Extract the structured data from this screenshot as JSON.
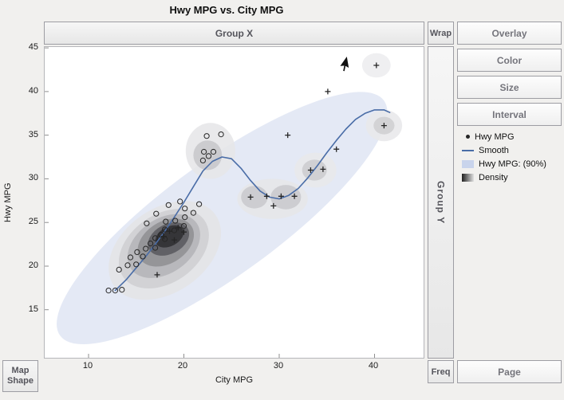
{
  "header": {
    "title": "Hwy MPG vs. City MPG"
  },
  "drop_zones": {
    "group_x": "Group X",
    "wrap": "Wrap",
    "group_y": "Group Y",
    "freq": "Freq",
    "map_shape": [
      "Map",
      "Shape"
    ]
  },
  "buttons": {
    "overlay": "Overlay",
    "color": "Color",
    "size": "Size",
    "interval": "Interval",
    "page": "Page"
  },
  "legend": {
    "items": [
      {
        "label": "Hwy MPG",
        "swatch": "dot"
      },
      {
        "label": "Smooth",
        "swatch": "line"
      },
      {
        "label": "Hwy MPG: (90%)",
        "swatch": "fill"
      },
      {
        "label": "Density",
        "swatch": "gradient"
      }
    ]
  },
  "colors": {
    "smooth_line": "#4a6da7",
    "interval_fill": "#c9d4ec",
    "marker": "#262626",
    "density_dark": "#1f1f1f",
    "density_light": "#e2e2e2"
  },
  "chart_data": {
    "type": "scatter",
    "title": "Hwy MPG vs. City MPG",
    "xlabel": "City MPG",
    "ylabel": "Hwy MPG",
    "xlim": [
      5.4,
      45.15
    ],
    "ylim": [
      9.5,
      45.1
    ],
    "xticks": [
      10,
      20,
      30,
      40
    ],
    "yticks": [
      15,
      20,
      25,
      30,
      35,
      40,
      45
    ],
    "grid": false,
    "legend_position": "right",
    "series": [
      {
        "name": "Hwy MPG",
        "marker": "circle",
        "points": [
          [
            12.1,
            17.2
          ],
          [
            12.8,
            17.2
          ],
          [
            13.5,
            17.3
          ],
          [
            13.2,
            19.6
          ],
          [
            14.1,
            20.1
          ],
          [
            14.4,
            21.0
          ],
          [
            15.0,
            20.2
          ],
          [
            15.1,
            21.6
          ],
          [
            15.7,
            21.1
          ],
          [
            16.0,
            22.0
          ],
          [
            16.1,
            24.9
          ],
          [
            16.5,
            22.6
          ],
          [
            17.0,
            22.1
          ],
          [
            17.0,
            23.2
          ],
          [
            17.1,
            26.0
          ],
          [
            17.6,
            23.6
          ],
          [
            18.0,
            23.1
          ],
          [
            18.0,
            24.2
          ],
          [
            18.1,
            25.1
          ],
          [
            18.4,
            27.0
          ],
          [
            19.0,
            24.1
          ],
          [
            19.1,
            25.2
          ],
          [
            19.6,
            27.4
          ],
          [
            20.0,
            24.6
          ],
          [
            20.1,
            25.6
          ],
          [
            20.1,
            26.6
          ],
          [
            21.0,
            26.1
          ],
          [
            21.6,
            27.1
          ],
          [
            22.0,
            32.1
          ],
          [
            22.1,
            33.1
          ],
          [
            22.6,
            32.6
          ],
          [
            23.1,
            33.1
          ],
          [
            22.4,
            34.9
          ],
          [
            23.9,
            35.1
          ]
        ]
      },
      {
        "name": "Hwy MPG",
        "marker": "plus",
        "points": [
          [
            17.2,
            19.0
          ],
          [
            17.9,
            23.4
          ],
          [
            18.5,
            24.0
          ],
          [
            19.0,
            23.0
          ],
          [
            19.4,
            24.4
          ],
          [
            20.0,
            23.9
          ],
          [
            27.0,
            27.9
          ],
          [
            28.7,
            28.0
          ],
          [
            29.4,
            26.9
          ],
          [
            30.2,
            28.0
          ],
          [
            31.6,
            28.0
          ],
          [
            30.9,
            35.0
          ],
          [
            33.3,
            31.0
          ],
          [
            34.6,
            31.1
          ],
          [
            36.0,
            33.4
          ],
          [
            35.1,
            40.0
          ],
          [
            40.2,
            43.0
          ],
          [
            41.0,
            36.1
          ]
        ]
      }
    ],
    "smooth_line": {
      "name": "Smooth",
      "color": "#4a6da7",
      "points": [
        [
          12.8,
          17.2
        ],
        [
          14.0,
          18.5
        ],
        [
          15.0,
          19.8
        ],
        [
          16.0,
          21.1
        ],
        [
          17.0,
          22.5
        ],
        [
          18.0,
          24.0
        ],
        [
          19.0,
          25.6
        ],
        [
          20.0,
          27.3
        ],
        [
          21.0,
          29.1
        ],
        [
          22.0,
          30.9
        ],
        [
          23.0,
          32.0
        ],
        [
          24.0,
          32.5
        ],
        [
          25.0,
          32.3
        ],
        [
          26.0,
          31.2
        ],
        [
          27.0,
          29.8
        ],
        [
          28.0,
          28.6
        ],
        [
          29.0,
          27.9
        ],
        [
          30.0,
          27.7
        ],
        [
          31.0,
          28.1
        ],
        [
          32.0,
          28.9
        ],
        [
          33.0,
          30.1
        ],
        [
          34.0,
          31.5
        ],
        [
          35.0,
          33.0
        ],
        [
          36.0,
          34.4
        ],
        [
          37.0,
          35.7
        ],
        [
          38.0,
          36.8
        ],
        [
          39.0,
          37.5
        ],
        [
          40.0,
          37.9
        ],
        [
          41.0,
          37.9
        ],
        [
          41.6,
          37.6
        ]
      ]
    },
    "interval_ellipse": {
      "name": "Hwy MPG: (90%)",
      "cx": 24.0,
      "cy": 25.5,
      "rx": 21.0,
      "ry": 6.5,
      "angle_deg": 36,
      "fill": "#c9d4ec",
      "opacity": 0.5
    },
    "density_contours": [
      {
        "cx": 18.0,
        "cy": 21.8,
        "rx": 6.5,
        "ry": 4.8,
        "rot": -35,
        "fill": "#e4e4e6"
      },
      {
        "cx": 17.9,
        "cy": 22.0,
        "rx": 5.2,
        "ry": 3.9,
        "rot": -35,
        "fill": "#cfcfd2"
      },
      {
        "cx": 17.9,
        "cy": 22.3,
        "rx": 4.2,
        "ry": 3.1,
        "rot": -35,
        "fill": "#b4b4b8"
      },
      {
        "cx": 18.1,
        "cy": 22.7,
        "rx": 3.2,
        "ry": 2.4,
        "rot": -32,
        "fill": "#8f8f93"
      },
      {
        "cx": 18.4,
        "cy": 23.1,
        "rx": 2.3,
        "ry": 1.7,
        "rot": -28,
        "fill": "#5a5a5e"
      },
      {
        "cx": 18.5,
        "cy": 23.4,
        "rx": 1.6,
        "ry": 1.1,
        "rot": -28,
        "fill": "#2f2f32"
      },
      {
        "cx": 22.8,
        "cy": 33.2,
        "rx": 2.6,
        "ry": 3.2,
        "rot": 0,
        "fill": "#e6e6e8"
      },
      {
        "cx": 22.5,
        "cy": 32.7,
        "rx": 1.5,
        "ry": 1.7,
        "rot": 0,
        "fill": "#c7c7cb"
      },
      {
        "cx": 29.3,
        "cy": 27.7,
        "rx": 3.7,
        "ry": 2.3,
        "rot": 0,
        "fill": "#e6e6e8"
      },
      {
        "cx": 27.4,
        "cy": 27.9,
        "rx": 1.4,
        "ry": 1.3,
        "rot": 0,
        "fill": "#c9c9cd"
      },
      {
        "cx": 30.7,
        "cy": 27.9,
        "rx": 1.6,
        "ry": 1.4,
        "rot": 0,
        "fill": "#c9c9cd"
      },
      {
        "cx": 33.8,
        "cy": 31.0,
        "rx": 2.2,
        "ry": 2.0,
        "rot": 0,
        "fill": "#e8e8ea"
      },
      {
        "cx": 33.7,
        "cy": 31.0,
        "rx": 1.3,
        "ry": 1.2,
        "rot": 0,
        "fill": "#cccccf"
      },
      {
        "cx": 41.0,
        "cy": 36.1,
        "rx": 1.9,
        "ry": 1.8,
        "rot": 0,
        "fill": "#e8e8ea"
      },
      {
        "cx": 41.0,
        "cy": 36.1,
        "rx": 1.1,
        "ry": 1.0,
        "rot": 0,
        "fill": "#cfcfd2"
      },
      {
        "cx": 40.2,
        "cy": 43.0,
        "rx": 1.5,
        "ry": 1.4,
        "rot": 0,
        "fill": "#ededef"
      }
    ]
  }
}
